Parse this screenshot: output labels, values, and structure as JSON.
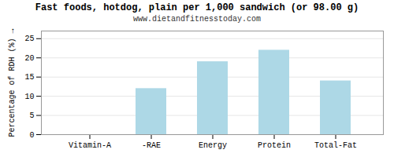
{
  "chart_data": {
    "type": "bar",
    "title": "Fast foods, hotdog, plain per 1,000 sandwich (or 98.00 g)",
    "subtitle": "www.dietandfitnesstoday.com",
    "categories": [
      "Vitamin-A",
      "-RAE",
      "Energy",
      "Protein",
      "Total-Fat"
    ],
    "values": [
      0,
      12,
      19,
      22,
      14
    ],
    "color": "#add8e6",
    "ylabel": "Percentage of RDH (%)",
    "ylim": [
      0,
      27
    ],
    "yticks": [
      0,
      5,
      10,
      15,
      20,
      25
    ],
    "grid": true
  }
}
